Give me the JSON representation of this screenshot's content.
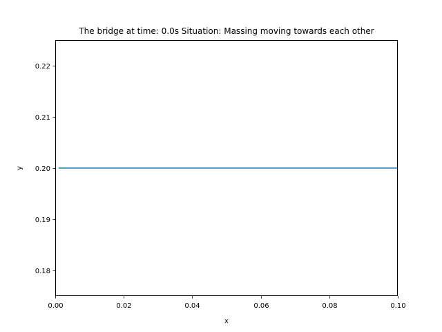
{
  "chart_data": {
    "type": "line",
    "title": "The bridge at time: 0.0s Situation: Massing moving towards each other",
    "xlabel": "x",
    "ylabel": "y",
    "xlim": [
      0.0,
      0.1
    ],
    "ylim": [
      0.175,
      0.225
    ],
    "xticks": [
      0.0,
      0.02,
      0.04,
      0.06,
      0.08,
      0.1
    ],
    "xtick_labels": [
      "0.00",
      "0.02",
      "0.04",
      "0.06",
      "0.08",
      "0.10"
    ],
    "yticks": [
      0.18,
      0.19,
      0.2,
      0.21,
      0.22
    ],
    "ytick_labels": [
      "0.18",
      "0.19",
      "0.20",
      "0.21",
      "0.22"
    ],
    "grid": false,
    "series": [
      {
        "color": "#1f77b4",
        "x": [
          0.001,
          0.1
        ],
        "y": [
          0.2,
          0.2
        ]
      }
    ]
  }
}
